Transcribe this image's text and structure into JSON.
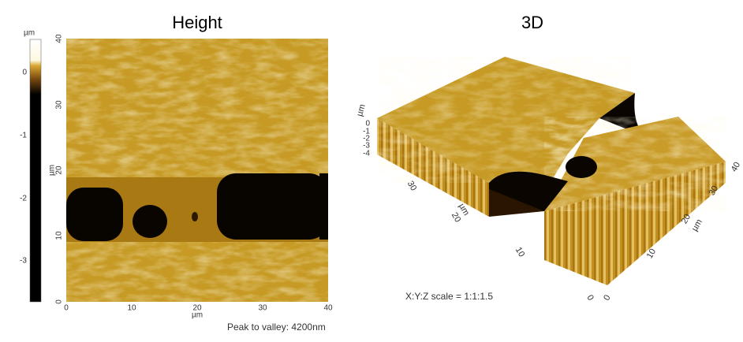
{
  "height_panel": {
    "title": "Height",
    "colorbar": {
      "unit": "µm",
      "ticks": [
        "0",
        "-1",
        "-2",
        "-3"
      ]
    },
    "y_axis": {
      "label": "µm",
      "ticks": [
        "40",
        "30",
        "20",
        "10",
        "0"
      ]
    },
    "x_axis": {
      "label": "µm",
      "ticks": [
        "0",
        "10",
        "20",
        "30",
        "40"
      ]
    },
    "footer": "Peak to valley: 4200nm"
  },
  "panel_3d": {
    "title": "3D",
    "z_axis": {
      "label": "µm",
      "ticks": [
        "0",
        "-1",
        "-2",
        "-3",
        "-4"
      ]
    },
    "left_axis": {
      "label": "µm",
      "ticks": [
        "30",
        "20",
        "10",
        "0"
      ]
    },
    "right_axis": {
      "label": "µm",
      "ticks": [
        "40",
        "30",
        "20",
        "10",
        "0"
      ]
    },
    "scale_note": "X:Y:Z scale = 1:1:1.5"
  }
}
